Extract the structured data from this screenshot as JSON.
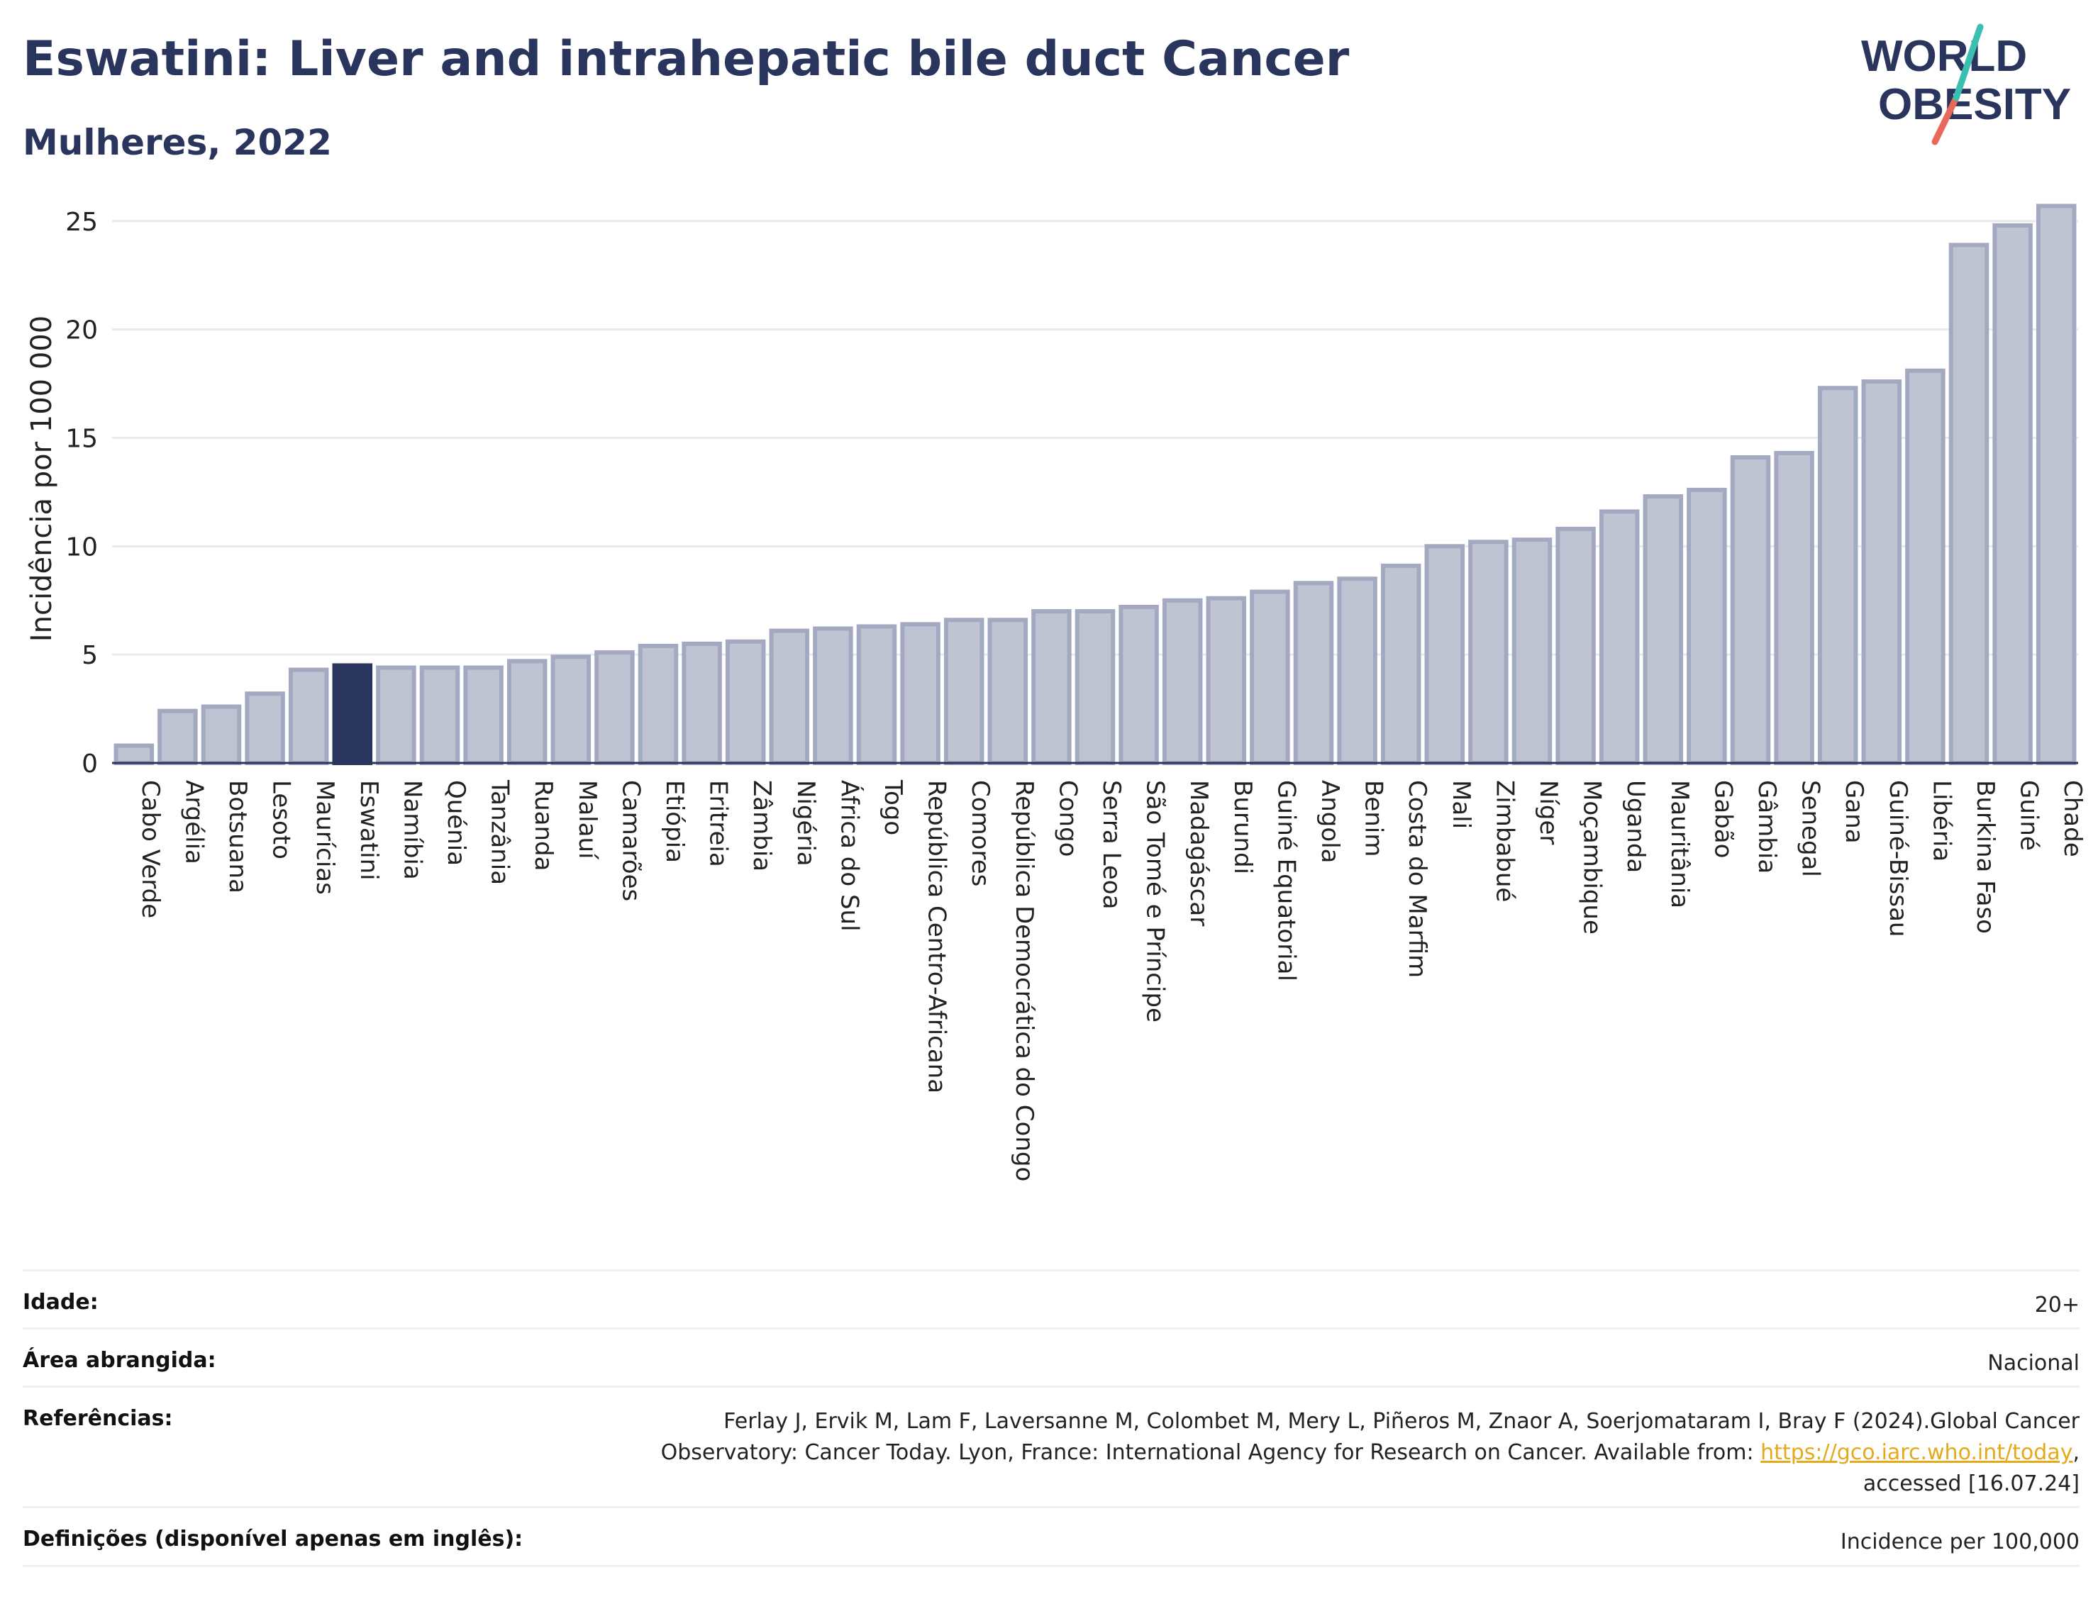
{
  "header": {
    "title": "Eswatini: Liver and intrahepatic bile duct Cancer",
    "subtitle": "Mulheres, 2022",
    "logo_line1": "WORLD",
    "logo_line2": "OBESITY"
  },
  "chart_data": {
    "type": "bar",
    "title": "Eswatini: Liver and intrahepatic bile duct Cancer",
    "subtitle": "Mulheres, 2022",
    "xlabel": "",
    "ylabel": "Incidência por 100 000",
    "ylim": [
      0,
      26.5
    ],
    "yticks": [
      0,
      5,
      10,
      15,
      20,
      25
    ],
    "grid": true,
    "highlight": "Eswatini",
    "categories": [
      "Cabo Verde",
      "Argélia",
      "Botsuana",
      "Lesoto",
      "Maurícias",
      "Eswatini",
      "Namíbia",
      "Quénia",
      "Tanzânia",
      "Ruanda",
      "Malauí",
      "Camarões",
      "Etiópia",
      "Eritreia",
      "Zâmbia",
      "Nigéria",
      "África do Sul",
      "Togo",
      "República Centro-Africana",
      "Comores",
      "República Democrática do Congo",
      "Congo",
      "Serra Leoa",
      "São Tomé e Príncipe",
      "Madagáscar",
      "Burundi",
      "Guiné Equatorial",
      "Angola",
      "Benim",
      "Costa do Marfim",
      "Mali",
      "Zimbabué",
      "Níger",
      "Moçambique",
      "Uganda",
      "Mauritânia",
      "Gabão",
      "Gâmbia",
      "Senegal",
      "Gana",
      "Guiné-Bissau",
      "Libéria",
      "Burkina Faso",
      "Guiné",
      "Chade"
    ],
    "values": [
      0.8,
      2.4,
      2.6,
      3.2,
      4.3,
      4.5,
      4.4,
      4.4,
      4.4,
      4.7,
      4.9,
      5.1,
      5.4,
      5.5,
      5.6,
      6.1,
      6.2,
      6.3,
      6.4,
      6.6,
      6.6,
      7.0,
      7.0,
      7.2,
      7.5,
      7.6,
      7.9,
      8.3,
      8.5,
      9.1,
      10.0,
      10.2,
      10.3,
      10.8,
      11.6,
      12.3,
      12.6,
      14.1,
      14.3,
      17.3,
      17.6,
      18.1,
      23.9,
      24.8,
      25.7
    ],
    "colors": {
      "bar": "#c0c4d2",
      "bar_edge": "#a3a9c0",
      "highlight": "#2a355e",
      "grid": "#e8eaef",
      "axis": "#2a355e"
    }
  },
  "info_table": {
    "rows": [
      {
        "label": "Idade:",
        "value": "20+"
      },
      {
        "label": "Área abrangida:",
        "value": "Nacional"
      },
      {
        "label": "Referências:",
        "value_pre": "Ferlay J, Ervik M, Lam F, Laversanne M, Colombet M, Mery L, Piñeros M, Znaor A, Soerjomataram I, Bray F (2024).Global Cancer Observatory: Cancer Today. Lyon, France: International Agency for Research on Cancer. Available from: ",
        "link": "https://gco.iarc.who.int/today",
        "value_post": ", accessed [16.07.24]"
      },
      {
        "label": "Definições (disponível apenas em inglês):",
        "value": "Incidence per 100,000"
      }
    ]
  }
}
